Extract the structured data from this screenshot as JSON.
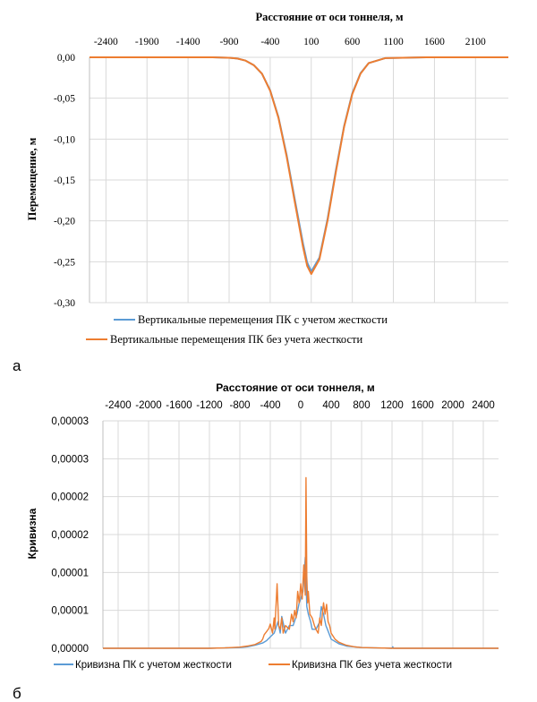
{
  "chart_data": [
    {
      "type": "line",
      "panel_label": "а",
      "title": "",
      "xlabel": "Расстояние от оси тоннеля, м",
      "ylabel": "Перемещение, м",
      "x_axis_position": "top",
      "xlim": [
        -2600,
        2500
      ],
      "ylim": [
        -0.3,
        0.0
      ],
      "x_ticks": [
        -2400,
        -1900,
        -1400,
        -900,
        -400,
        100,
        600,
        1100,
        1600,
        2100
      ],
      "x_tick_labels": [
        "-2400",
        "-1900",
        "-1400",
        "-900",
        "-400",
        "100",
        "600",
        "1100",
        "1600",
        "2100"
      ],
      "y_ticks": [
        0.0,
        -0.05,
        -0.1,
        -0.15,
        -0.2,
        -0.25,
        -0.3
      ],
      "y_tick_labels": [
        "0,00",
        "-0,05",
        "-0,10",
        "-0,15",
        "-0,20",
        "-0,25",
        "-0,30"
      ],
      "grid": true,
      "legend_position": "bottom",
      "series": [
        {
          "name": "Вертикальные перемещения ПК с учетом жесткости",
          "color": "#5b9bd5",
          "x": [
            -2600,
            -1500,
            -1100,
            -900,
            -800,
            -700,
            -600,
            -500,
            -400,
            -300,
            -200,
            -100,
            0,
            50,
            100,
            200,
            300,
            400,
            500,
            600,
            700,
            800,
            1000,
            1500,
            2500
          ],
          "y": [
            0.0,
            0.0,
            0.0,
            -0.0005,
            -0.0015,
            -0.004,
            -0.0095,
            -0.02,
            -0.0405,
            -0.073,
            -0.119,
            -0.174,
            -0.228,
            -0.251,
            -0.262,
            -0.245,
            -0.197,
            -0.138,
            -0.084,
            -0.044,
            -0.0195,
            -0.007,
            -0.001,
            0.0,
            0.0
          ]
        },
        {
          "name": "Вертикальные перемещения ПК без учета жесткости",
          "color": "#ed7d31",
          "x": [
            -2600,
            -1500,
            -1100,
            -900,
            -800,
            -700,
            -600,
            -500,
            -400,
            -300,
            -200,
            -100,
            0,
            50,
            100,
            200,
            300,
            400,
            500,
            600,
            700,
            800,
            1000,
            1500,
            2500
          ],
          "y": [
            0.0,
            0.0,
            0.0,
            -0.0005,
            -0.0015,
            -0.004,
            -0.0095,
            -0.02,
            -0.041,
            -0.074,
            -0.121,
            -0.177,
            -0.232,
            -0.255,
            -0.265,
            -0.247,
            -0.199,
            -0.14,
            -0.085,
            -0.045,
            -0.02,
            -0.007,
            -0.001,
            0.0,
            0.0
          ]
        }
      ]
    },
    {
      "type": "line",
      "panel_label": "б",
      "title": "",
      "xlabel": "Расстояние от оси тоннеля, м",
      "ylabel": "Кривизна",
      "x_axis_position": "top",
      "xlim": [
        -2600,
        2600
      ],
      "ylim": [
        0,
        3e-05
      ],
      "x_ticks": [
        -2400,
        -2000,
        -1600,
        -1200,
        -800,
        -400,
        0,
        400,
        800,
        1200,
        1600,
        2000,
        2400
      ],
      "x_tick_labels": [
        "-2400",
        "-2000",
        "-1600",
        "-1200",
        "-800",
        "-400",
        "0",
        "400",
        "800",
        "1200",
        "1600",
        "2000",
        "2400"
      ],
      "y_ticks": [
        0,
        5e-06,
        1e-05,
        1.5e-05,
        2e-05,
        2.5e-05,
        3e-05
      ],
      "y_tick_labels": [
        "0,00000",
        "0,00001",
        "0,00001",
        "0,00002",
        "0,00002",
        "0,00003",
        "0,00003"
      ],
      "grid": true,
      "legend_position": "bottom",
      "series": [
        {
          "name": "Кривизна ПК с учетом жесткости",
          "color": "#5b9bd5",
          "x": [
            -2600,
            -1200,
            -1000,
            -800,
            -700,
            -600,
            -500,
            -450,
            -400,
            -350,
            -330,
            -300,
            -270,
            -250,
            -200,
            -150,
            -100,
            -50,
            -20,
            0,
            30,
            60,
            80,
            100,
            130,
            150,
            200,
            250,
            270,
            300,
            330,
            350,
            400,
            500,
            600,
            800,
            1000,
            1200,
            1210,
            1220,
            1400,
            2600
          ],
          "y": [
            0.0,
            0.0,
            5e-08,
            1e-07,
            2e-07,
            4e-07,
            7e-07,
            1e-06,
            1.5e-06,
            2e-06,
            2.5e-06,
            3.5e-06,
            2e-06,
            4.2e-06,
            2e-06,
            3e-06,
            3e-06,
            4.5e-06,
            6e-06,
            6.5e-06,
            7.5e-06,
            1.2e-05,
            5.5e-06,
            4.5e-06,
            3.5e-06,
            2.5e-06,
            2.5e-06,
            3.5e-06,
            5.5e-06,
            4.5e-06,
            3e-06,
            2.5e-06,
            1.2e-06,
            6e-07,
            3e-07,
            1e-07,
            5e-08,
            0.0,
            2e-07,
            0.0,
            0.0,
            0.0
          ]
        },
        {
          "name": "Кривизна ПК без учета жесткости",
          "color": "#ed7d31",
          "x": [
            -2600,
            -1200,
            -1000,
            -800,
            -700,
            -600,
            -520,
            -500,
            -480,
            -450,
            -420,
            -400,
            -370,
            -350,
            -340,
            -330,
            -310,
            -290,
            -270,
            -250,
            -230,
            -200,
            -150,
            -120,
            -100,
            -80,
            -60,
            -40,
            -20,
            0,
            20,
            40,
            60,
            70,
            80,
            90,
            100,
            120,
            150,
            180,
            200,
            230,
            250,
            270,
            290,
            300,
            320,
            340,
            360,
            380,
            400,
            450,
            500,
            600,
            700,
            800,
            1000,
            1200,
            2600
          ],
          "y": [
            0.0,
            0.0,
            5e-08,
            1.5e-07,
            3e-07,
            5e-07,
            9e-07,
            1.2e-06,
            1.8e-06,
            2.2e-06,
            2.6e-06,
            3.2e-06,
            2e-06,
            4e-06,
            2.5e-06,
            4.5e-06,
            8.5e-06,
            3e-06,
            2.5e-06,
            4e-06,
            2e-06,
            3e-06,
            2.5e-06,
            4.5e-06,
            3.5e-06,
            5e-06,
            4e-06,
            7.5e-06,
            6e-06,
            8.5e-06,
            6.5e-06,
            1.1e-05,
            7e-06,
            2.25e-05,
            9.5e-06,
            6e-06,
            7.5e-06,
            4.5e-06,
            4e-06,
            3e-06,
            2.5e-06,
            2e-06,
            4e-06,
            3e-06,
            5e-06,
            6e-06,
            4.5e-06,
            5.8e-06,
            3.5e-06,
            3e-06,
            2e-06,
            1.2e-06,
            8e-07,
            4e-07,
            2e-07,
            1e-07,
            5e-08,
            0.0,
            0.0
          ]
        }
      ]
    }
  ]
}
